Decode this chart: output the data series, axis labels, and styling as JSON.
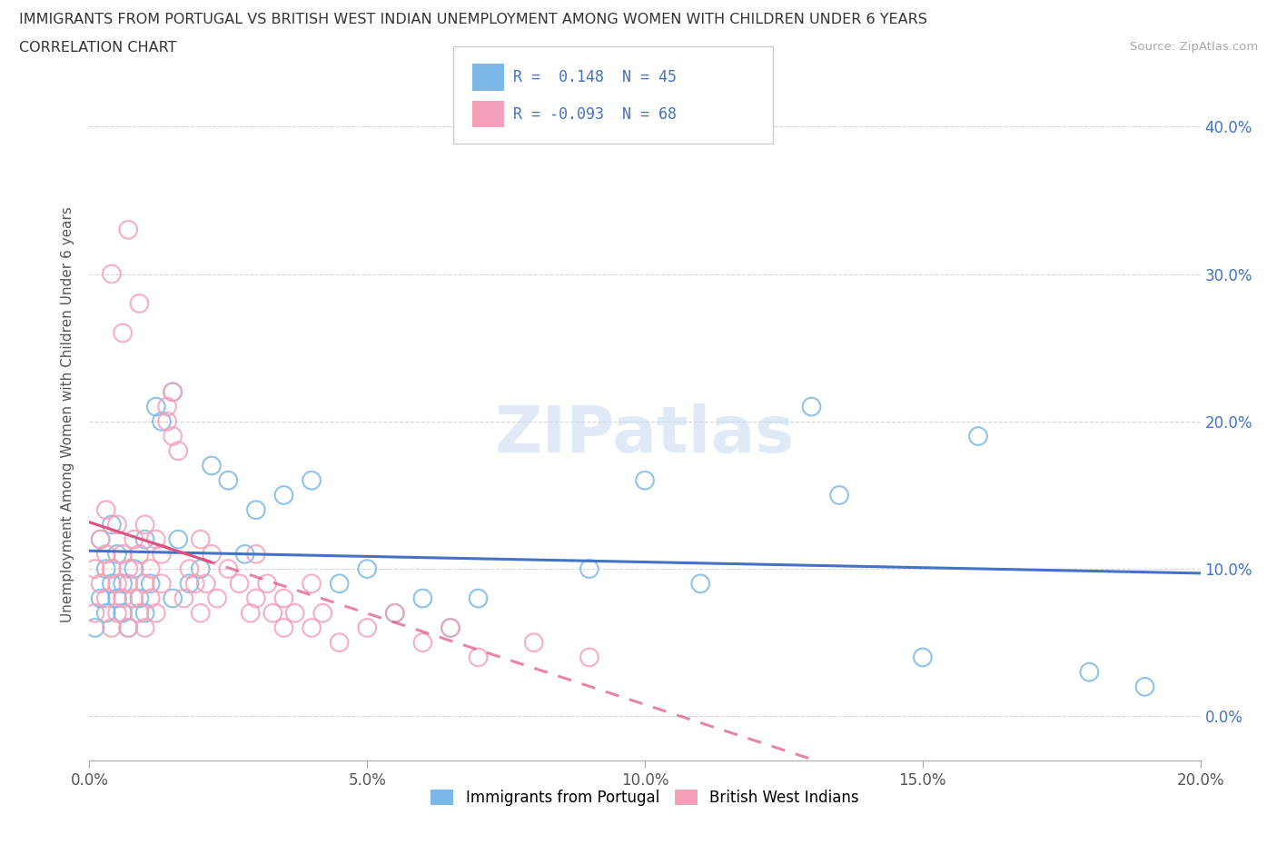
{
  "title_line1": "IMMIGRANTS FROM PORTUGAL VS BRITISH WEST INDIAN UNEMPLOYMENT AMONG WOMEN WITH CHILDREN UNDER 6 YEARS",
  "title_line2": "CORRELATION CHART",
  "source": "Source: ZipAtlas.com",
  "ylabel": "Unemployment Among Women with Children Under 6 years",
  "legend_label1": "Immigrants from Portugal",
  "legend_label2": "British West Indians",
  "r1": 0.148,
  "n1": 45,
  "r2": -0.093,
  "n2": 68,
  "color_blue": "#7bb8e8",
  "color_pink": "#f4a0b8",
  "trend_blue": "#4472c4",
  "trend_pink": "#e05080",
  "xlim": [
    0.0,
    0.2
  ],
  "ylim": [
    -0.03,
    0.44
  ],
  "xticks": [
    0.0,
    0.05,
    0.1,
    0.15,
    0.2
  ],
  "yticks_right": [
    0.0,
    0.1,
    0.2,
    0.3,
    0.4
  ],
  "background": "#ffffff",
  "grid_color": "#cccccc",
  "blue_intercept": 0.072,
  "blue_slope": 0.5,
  "pink_intercept": 0.118,
  "pink_slope": -0.42,
  "blue_x": [
    0.001,
    0.002,
    0.002,
    0.003,
    0.003,
    0.004,
    0.004,
    0.005,
    0.005,
    0.006,
    0.006,
    0.007,
    0.008,
    0.009,
    0.01,
    0.01,
    0.011,
    0.012,
    0.013,
    0.015,
    0.015,
    0.016,
    0.018,
    0.02,
    0.022,
    0.025,
    0.028,
    0.03,
    0.035,
    0.04,
    0.045,
    0.05,
    0.055,
    0.06,
    0.065,
    0.07,
    0.09,
    0.1,
    0.11,
    0.13,
    0.15,
    0.16,
    0.18,
    0.19,
    0.135
  ],
  "blue_y": [
    0.06,
    0.08,
    0.12,
    0.07,
    0.1,
    0.09,
    0.13,
    0.08,
    0.11,
    0.07,
    0.09,
    0.06,
    0.1,
    0.08,
    0.12,
    0.07,
    0.09,
    0.21,
    0.2,
    0.22,
    0.08,
    0.12,
    0.09,
    0.1,
    0.17,
    0.16,
    0.11,
    0.14,
    0.15,
    0.16,
    0.09,
    0.1,
    0.07,
    0.08,
    0.06,
    0.08,
    0.1,
    0.16,
    0.09,
    0.21,
    0.04,
    0.19,
    0.03,
    0.02,
    0.15
  ],
  "pink_x": [
    0.001,
    0.001,
    0.002,
    0.002,
    0.003,
    0.003,
    0.003,
    0.004,
    0.004,
    0.005,
    0.005,
    0.005,
    0.006,
    0.006,
    0.007,
    0.007,
    0.007,
    0.008,
    0.008,
    0.009,
    0.009,
    0.01,
    0.01,
    0.01,
    0.011,
    0.011,
    0.012,
    0.012,
    0.013,
    0.013,
    0.014,
    0.014,
    0.015,
    0.015,
    0.016,
    0.017,
    0.018,
    0.019,
    0.02,
    0.02,
    0.021,
    0.022,
    0.023,
    0.025,
    0.027,
    0.029,
    0.03,
    0.03,
    0.032,
    0.033,
    0.035,
    0.035,
    0.037,
    0.04,
    0.04,
    0.042,
    0.045,
    0.05,
    0.055,
    0.06,
    0.065,
    0.07,
    0.08,
    0.09,
    0.007,
    0.009,
    0.004,
    0.006
  ],
  "pink_y": [
    0.07,
    0.1,
    0.09,
    0.12,
    0.08,
    0.11,
    0.14,
    0.06,
    0.1,
    0.09,
    0.13,
    0.07,
    0.11,
    0.08,
    0.1,
    0.06,
    0.09,
    0.12,
    0.08,
    0.11,
    0.07,
    0.09,
    0.13,
    0.06,
    0.1,
    0.08,
    0.12,
    0.07,
    0.09,
    0.11,
    0.21,
    0.2,
    0.19,
    0.22,
    0.18,
    0.08,
    0.1,
    0.09,
    0.12,
    0.07,
    0.09,
    0.11,
    0.08,
    0.1,
    0.09,
    0.07,
    0.08,
    0.11,
    0.09,
    0.07,
    0.06,
    0.08,
    0.07,
    0.06,
    0.09,
    0.07,
    0.05,
    0.06,
    0.07,
    0.05,
    0.06,
    0.04,
    0.05,
    0.04,
    0.33,
    0.28,
    0.3,
    0.26
  ]
}
